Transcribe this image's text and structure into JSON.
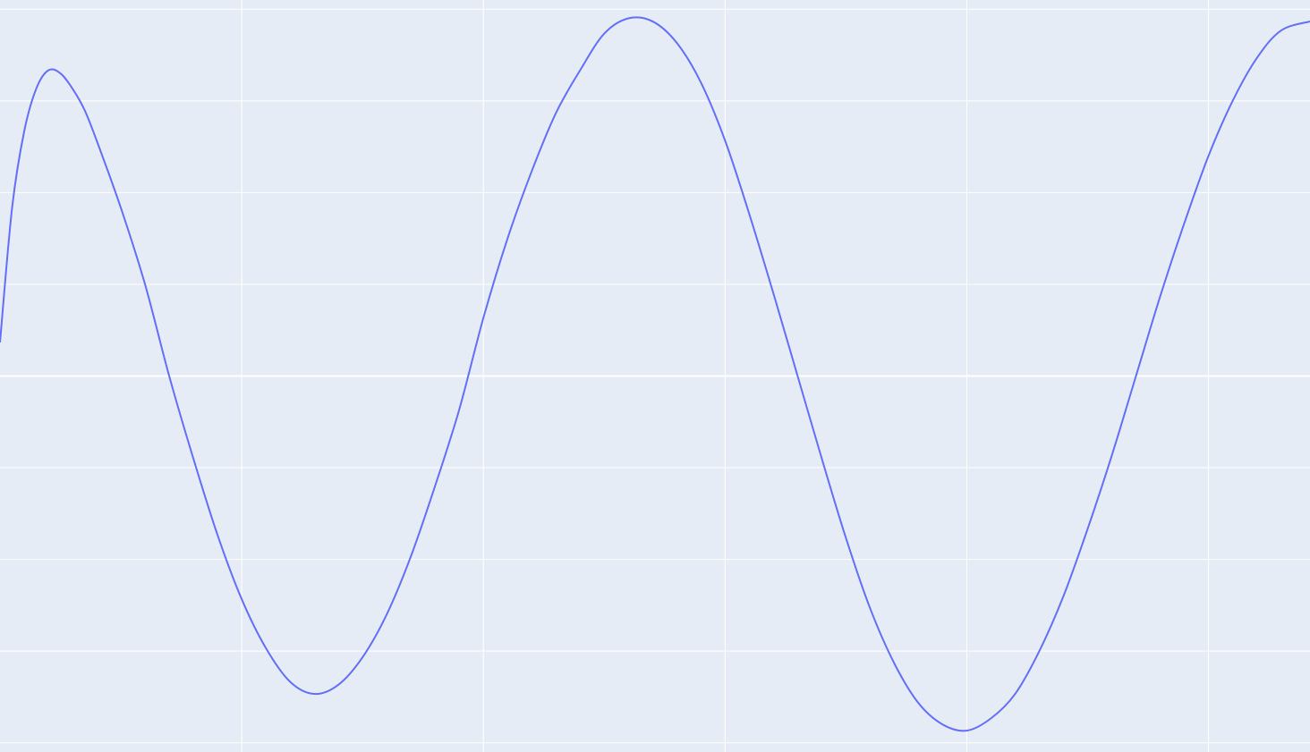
{
  "colors": {
    "background": "#E5ECF6",
    "grid": "#FFFFFF",
    "line": "#636EFA"
  },
  "chart_data": {
    "type": "line",
    "title": "",
    "xlabel": "",
    "ylabel": "",
    "grid": true,
    "legend": "none",
    "xlim": [
      0,
      5.42
    ],
    "ylim": [
      -1.23,
      1.23
    ],
    "x_gridlines": [
      1,
      2,
      3,
      4,
      5
    ],
    "y_gridlines": [
      -1.2,
      -0.9,
      -0.6,
      -0.3,
      0,
      0.3,
      0.6,
      0.9,
      1.2
    ],
    "series": [
      {
        "x": [
          0,
          0.05,
          0.1,
          0.15,
          0.2,
          0.25,
          0.3,
          0.35,
          0.4,
          0.5,
          0.6,
          0.7,
          0.8,
          0.9,
          1.0,
          1.1,
          1.2,
          1.3,
          1.4,
          1.5,
          1.6,
          1.7,
          1.8,
          1.9,
          2.0,
          2.1,
          2.2,
          2.3,
          2.4,
          2.5,
          2.6,
          2.7,
          2.8,
          2.9,
          3.0,
          3.1,
          3.2,
          3.3,
          3.4,
          3.5,
          3.6,
          3.7,
          3.8,
          3.9,
          4.0,
          4.1,
          4.2,
          4.3,
          4.4,
          4.5,
          4.6,
          4.7,
          4.8,
          4.9,
          5.0,
          5.1,
          5.2,
          5.3,
          5.42
        ],
        "values": [
          0.11,
          0.55,
          0.8,
          0.94,
          1.0,
          0.99,
          0.94,
          0.87,
          0.77,
          0.55,
          0.3,
          0.0,
          -0.27,
          -0.52,
          -0.73,
          -0.89,
          -1.0,
          -1.04,
          -1.01,
          -0.92,
          -0.78,
          -0.59,
          -0.36,
          -0.11,
          0.19,
          0.45,
          0.67,
          0.86,
          1.0,
          1.12,
          1.17,
          1.16,
          1.09,
          0.96,
          0.77,
          0.53,
          0.27,
          0.0,
          -0.27,
          -0.53,
          -0.76,
          -0.94,
          -1.07,
          -1.14,
          -1.16,
          -1.12,
          -1.04,
          -0.9,
          -0.72,
          -0.5,
          -0.26,
          0.0,
          0.26,
          0.5,
          0.72,
          0.9,
          1.04,
          1.13,
          1.16
        ]
      }
    ]
  }
}
